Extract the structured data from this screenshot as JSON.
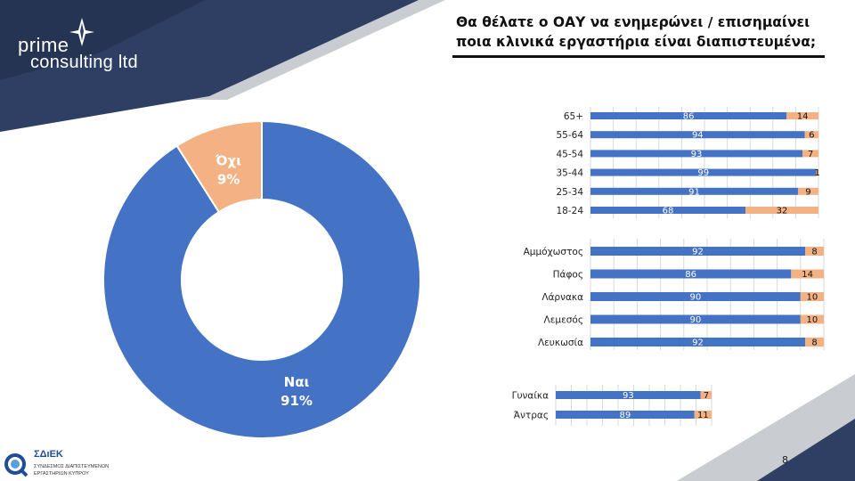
{
  "header": {
    "title": "Θα θέλατε ο ΟΑΥ να ενημερώνει / επισημαίνει ποια κλινικά εργαστήρια είναι διαπιστευμένα;"
  },
  "logo": {
    "line1": "prime",
    "line2": "consulting ltd"
  },
  "footer": {
    "page_number": "8",
    "org_abbr": "ΣΔιΕΚ",
    "org_line1": "ΣΥΝΔΕΣΜΟΣ ΔΙΑΠΙΣΤΕΥΜΕΝΩΝ",
    "org_line2": "ΕΡΓΑΣΤΗΡΙΩΝ ΚΥΠΡΟΥ"
  },
  "colors": {
    "yes": "#4472c4",
    "no": "#f4b183",
    "navy": "#2f3f63",
    "navy_dark": "#1f2b48"
  },
  "chart_data": [
    {
      "type": "pie",
      "categories": [
        "Ναι",
        "Όχι"
      ],
      "values": [
        91,
        9
      ],
      "labels": [
        "91%",
        "9%"
      ]
    },
    {
      "type": "bar",
      "orientation": "horizontal",
      "stacked": true,
      "categories": [
        "65+",
        "55-64",
        "45-54",
        "35-44",
        "25-34",
        "18-24"
      ],
      "series": [
        {
          "values": [
            86,
            94,
            93,
            99,
            91,
            68
          ]
        },
        {
          "values": [
            14,
            6,
            7,
            1,
            9,
            32
          ]
        }
      ],
      "xlim": [
        0,
        100
      ]
    },
    {
      "type": "bar",
      "orientation": "horizontal",
      "stacked": true,
      "categories": [
        "Αμμόχωστος",
        "Πάφος",
        "Λάρνακα",
        "Λεμεσός",
        "Λευκωσία"
      ],
      "series": [
        {
          "values": [
            92,
            86,
            90,
            90,
            92
          ]
        },
        {
          "values": [
            8,
            14,
            10,
            10,
            8
          ]
        }
      ],
      "xlim": [
        0,
        100
      ]
    },
    {
      "type": "bar",
      "orientation": "horizontal",
      "stacked": true,
      "categories": [
        "Γυναίκα",
        "Άντρας"
      ],
      "series": [
        {
          "values": [
            93,
            89
          ]
        },
        {
          "values": [
            7,
            11
          ]
        }
      ],
      "xlim": [
        0,
        100
      ]
    }
  ]
}
